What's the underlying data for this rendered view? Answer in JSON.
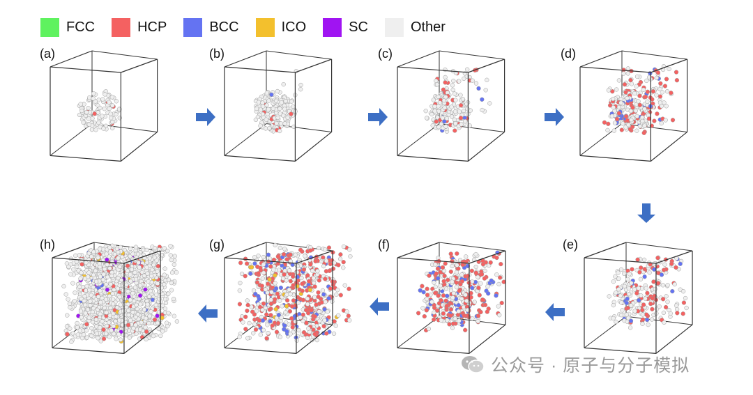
{
  "legend": [
    {
      "label": "FCC",
      "color": "#5ff25f"
    },
    {
      "label": "HCP",
      "color": "#f46161"
    },
    {
      "label": "BCC",
      "color": "#6473f2"
    },
    {
      "label": "ICO",
      "color": "#f3c02d"
    },
    {
      "label": "SC",
      "color": "#a014f2"
    },
    {
      "label": "Other",
      "color": "#efefef"
    }
  ],
  "panels": [
    {
      "label": "(a)",
      "stage": "small central cluster, mostly Other atoms"
    },
    {
      "label": "(b)",
      "stage": "central cluster with few scattered atoms"
    },
    {
      "label": "(c)",
      "stage": "cluster with more scattered atoms"
    },
    {
      "label": "(d)",
      "stage": "spreading cluster with HCP and BCC"
    },
    {
      "label": "(e)",
      "stage": "dispersed atoms"
    },
    {
      "label": "(f)",
      "stage": "more dispersed"
    },
    {
      "label": "(g)",
      "stage": "dense box"
    },
    {
      "label": "(h)",
      "stage": "fully filled box"
    }
  ],
  "colors": {
    "arrow": "#3d6fc4",
    "box_line": "#333333",
    "atom_outline": "#9a9a9a"
  },
  "watermark": {
    "text": "公众号 · 原子与分子模拟",
    "icon": "wechat-icon"
  }
}
